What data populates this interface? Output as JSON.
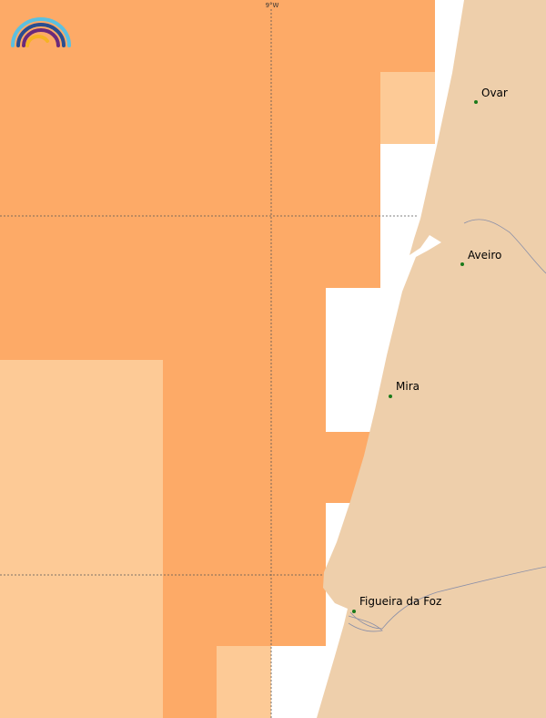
{
  "graticule": {
    "longitude_label": "9°W"
  },
  "places": [
    {
      "label": "Ovar"
    },
    {
      "label": "Aveiro"
    },
    {
      "label": "Mira"
    },
    {
      "label": "Figueira da Foz"
    }
  ]
}
